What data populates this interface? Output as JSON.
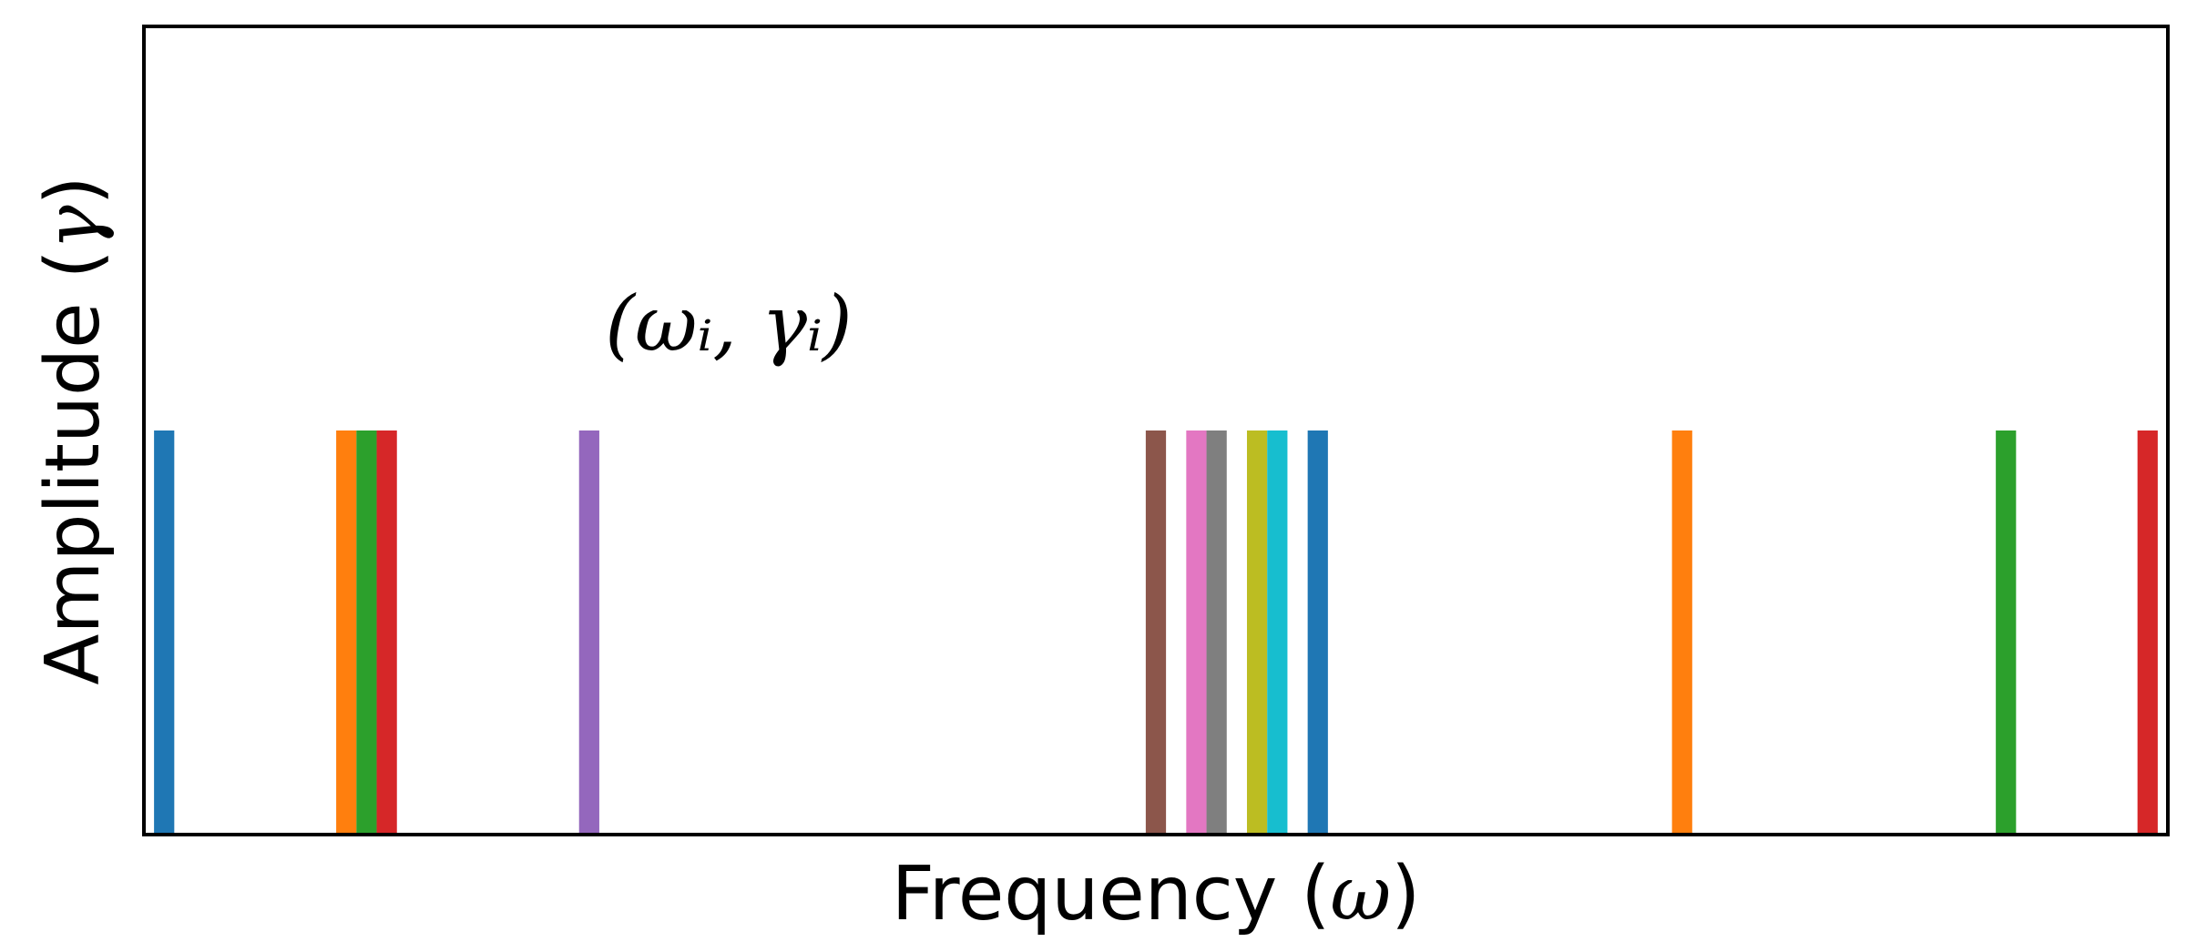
{
  "chart_data": {
    "type": "bar",
    "xlabel": "Frequency",
    "xlabel_symbol": "ω",
    "ylabel": "Amplitude",
    "ylabel_symbol": "γ",
    "annotation": "(ω_i, γ_i)",
    "annotation_display": "(ωᵢ, γᵢ)",
    "xlim": [
      0,
      100
    ],
    "ylim": [
      0,
      1
    ],
    "grid": false,
    "ticks_visible": false,
    "bars": [
      {
        "x": 1.0,
        "value": 0.5,
        "color": "#1f77b4"
      },
      {
        "x": 10.0,
        "value": 0.5,
        "color": "#ff7f0e"
      },
      {
        "x": 11.0,
        "value": 0.5,
        "color": "#2ca02c"
      },
      {
        "x": 12.0,
        "value": 0.5,
        "color": "#d62728"
      },
      {
        "x": 22.0,
        "value": 0.5,
        "color": "#9467bd"
      },
      {
        "x": 50.0,
        "value": 0.5,
        "color": "#8c564b"
      },
      {
        "x": 52.0,
        "value": 0.5,
        "color": "#e377c2"
      },
      {
        "x": 53.0,
        "value": 0.5,
        "color": "#7f7f7f"
      },
      {
        "x": 55.0,
        "value": 0.5,
        "color": "#bcbd22"
      },
      {
        "x": 56.0,
        "value": 0.5,
        "color": "#17becf"
      },
      {
        "x": 58.0,
        "value": 0.5,
        "color": "#1f77b4"
      },
      {
        "x": 76.0,
        "value": 0.5,
        "color": "#ff7f0e"
      },
      {
        "x": 92.0,
        "value": 0.5,
        "color": "#2ca02c"
      },
      {
        "x": 99.0,
        "value": 0.5,
        "color": "#d62728"
      }
    ],
    "bar_width": 1.0
  }
}
